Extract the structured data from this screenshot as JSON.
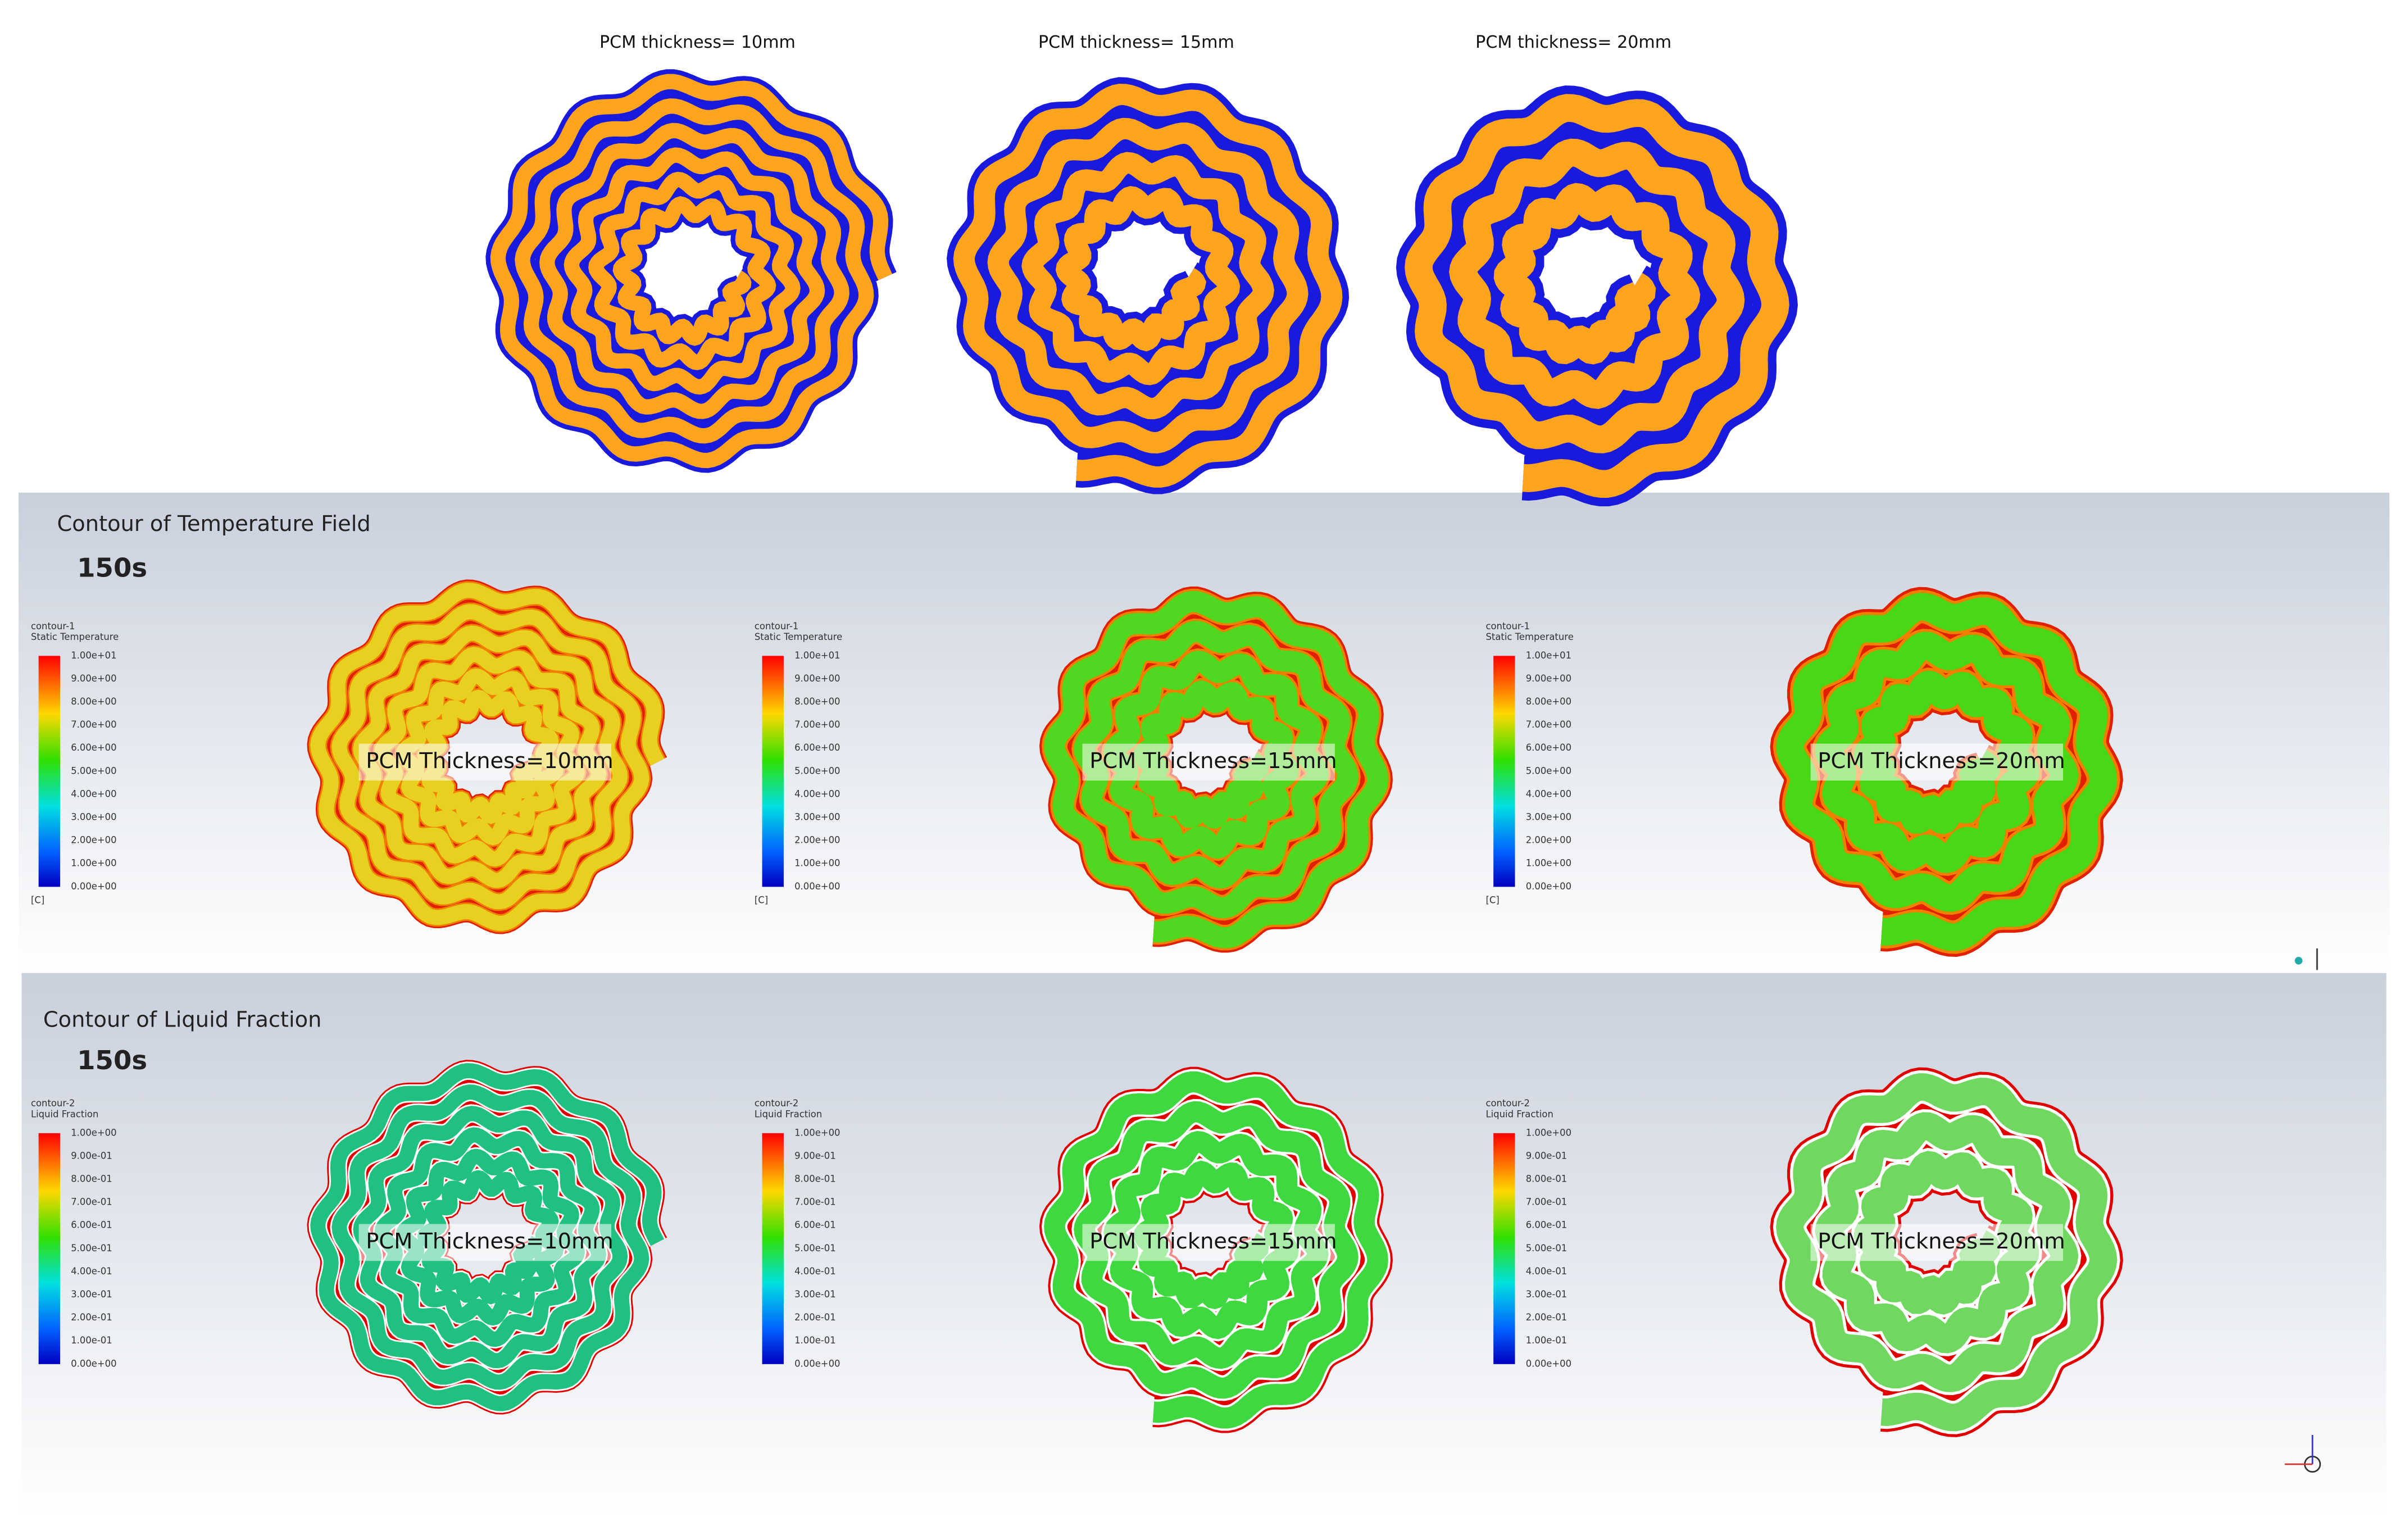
{
  "top_row": {
    "titles": [
      "PCM thickness= 10mm",
      "PCM thickness= 15mm",
      "PCM thickness= 20mm"
    ]
  },
  "temperature_panel": {
    "title": "Contour of Temperature Field",
    "time": "150s",
    "legends": [
      {
        "name": "contour-1",
        "variable": "Static Temperature",
        "ticks": [
          "1.00e+01",
          "9.00e+00",
          "8.00e+00",
          "7.00e+00",
          "6.00e+00",
          "5.00e+00",
          "4.00e+00",
          "3.00e+00",
          "2.00e+00",
          "1.00e+00",
          "0.00e+00"
        ],
        "unit": "[C]"
      },
      {
        "name": "contour-1",
        "variable": "Static Temperature",
        "ticks": [
          "1.00e+01",
          "9.00e+00",
          "8.00e+00",
          "7.00e+00",
          "6.00e+00",
          "5.00e+00",
          "4.00e+00",
          "3.00e+00",
          "2.00e+00",
          "1.00e+00",
          "0.00e+00"
        ],
        "unit": "[C]"
      },
      {
        "name": "contour-1",
        "variable": "Static Temperature",
        "ticks": [
          "1.00e+01",
          "9.00e+00",
          "8.00e+00",
          "7.00e+00",
          "6.00e+00",
          "5.00e+00",
          "4.00e+00",
          "3.00e+00",
          "2.00e+00",
          "1.00e+00",
          "0.00e+00"
        ],
        "unit": "[C]"
      }
    ],
    "labels": [
      "PCM Thickness=10mm",
      "PCM Thickness=15mm",
      "PCM Thickness=20mm"
    ]
  },
  "liquid_panel": {
    "title": "Contour of Liquid Fraction",
    "time": "150s",
    "legends": [
      {
        "name": "contour-2",
        "variable": "Liquid Fraction",
        "ticks": [
          "1.00e+00",
          "9.00e-01",
          "8.00e-01",
          "7.00e-01",
          "6.00e-01",
          "5.00e-01",
          "4.00e-01",
          "3.00e-01",
          "2.00e-01",
          "1.00e-01",
          "0.00e+00"
        ]
      },
      {
        "name": "contour-2",
        "variable": "Liquid Fraction",
        "ticks": [
          "1.00e+00",
          "9.00e-01",
          "8.00e-01",
          "7.00e-01",
          "6.00e-01",
          "5.00e-01",
          "4.00e-01",
          "3.00e-01",
          "2.00e-01",
          "1.00e-01",
          "0.00e+00"
        ]
      },
      {
        "name": "contour-2",
        "variable": "Liquid Fraction",
        "ticks": [
          "1.00e+00",
          "9.00e-01",
          "8.00e-01",
          "7.00e-01",
          "6.00e-01",
          "5.00e-01",
          "4.00e-01",
          "3.00e-01",
          "2.00e-01",
          "1.00e-01",
          "0.00e+00"
        ]
      }
    ],
    "labels": [
      "PCM Thickness=10mm",
      "PCM Thickness=15mm",
      "PCM Thickness=20mm"
    ]
  }
}
